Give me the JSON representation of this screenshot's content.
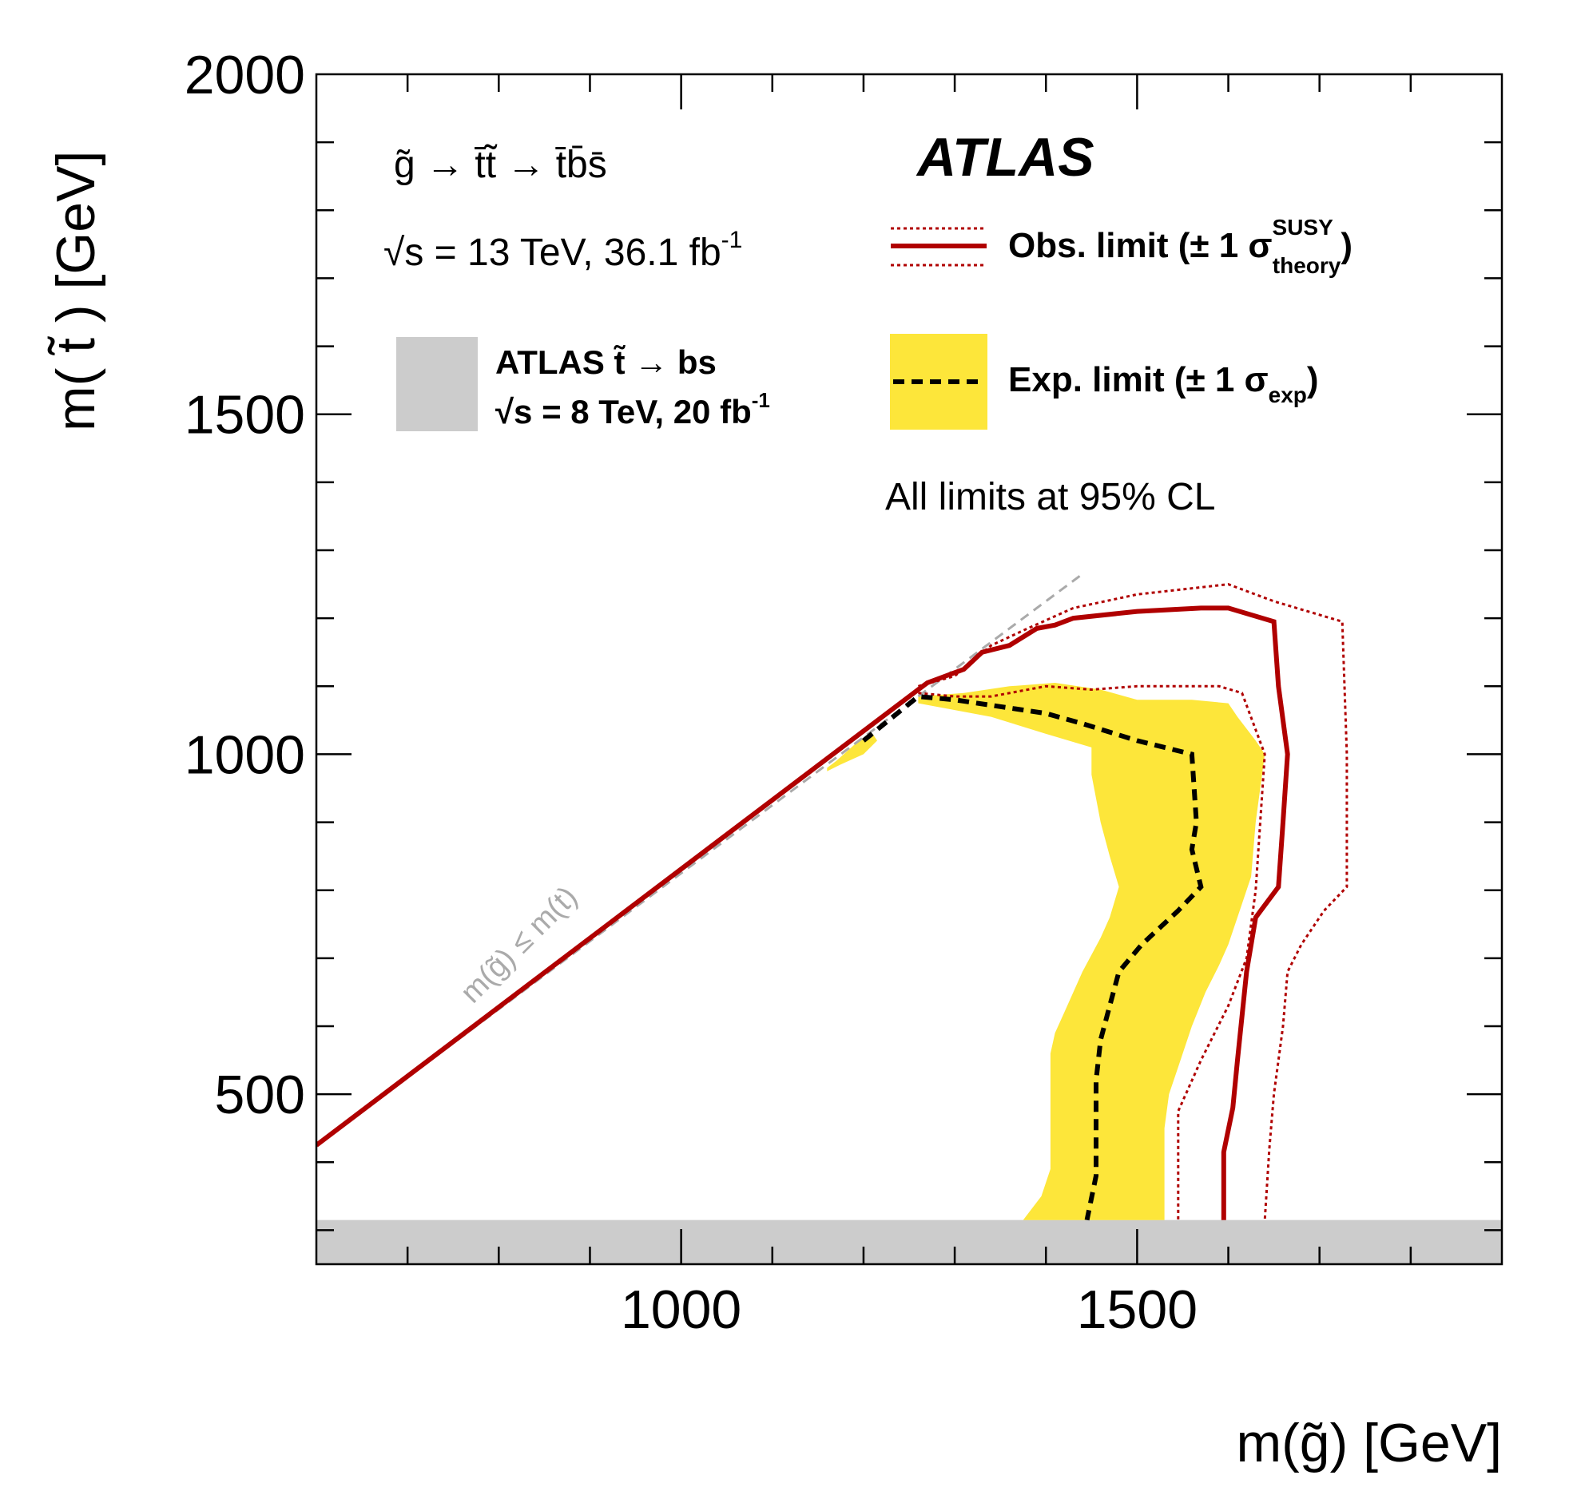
{
  "chart_data": {
    "type": "area",
    "title": "",
    "xlabel": "m(g̃) [GeV]",
    "ylabel": "m( t̃ ) [GeV]",
    "xlim": [
      600,
      1900
    ],
    "ylim": [
      250,
      2000
    ],
    "x_ticks": [
      1000,
      1500
    ],
    "y_ticks": [
      500,
      1000,
      1500,
      2000
    ],
    "x_tick_labels": [
      "1000",
      "1500"
    ],
    "y_tick_labels": [
      "500",
      "1000",
      "1500",
      "2000"
    ],
    "process": "g̃ → t̄t̃ → t̄b̄s̄",
    "energy": "√s = 13 TeV, 36.1 fb",
    "energy_sup": "-1",
    "experiment": "ATLAS",
    "cl_note": "All limits at 95% CL",
    "diagonal_label": "m(g̃) ≤ m(t)",
    "legend": {
      "obs": {
        "text": "Obs. limit (± 1 σ",
        "sup": "SUSY",
        "sub": "theory",
        "close": ")"
      },
      "exp": {
        "text": "Exp. limit (± 1 σ",
        "sub": "exp",
        "close": ")"
      },
      "prev_line1": "ATLAS t̃ → bs",
      "prev_line2": "√s = 8 TeV, 20 fb",
      "prev_sup": "-1"
    },
    "colors": {
      "obs": "#b00000",
      "obs_band": "#b00000",
      "exp": "#000000",
      "exp_band": "#fde63a",
      "excluded_prev": "#cccccc",
      "diagonal": "#aaaaaa"
    },
    "previous_exclusion": {
      "x_range": [
        600,
        1900
      ],
      "y_range": [
        250,
        315
      ]
    },
    "series": [
      {
        "name": "Observed limit",
        "style": "solid",
        "points": [
          [
            600,
            425
          ],
          [
            1260,
            1095
          ],
          [
            1270,
            1105
          ],
          [
            1310,
            1125
          ],
          [
            1330,
            1150
          ],
          [
            1360,
            1160
          ],
          [
            1390,
            1185
          ],
          [
            1410,
            1190
          ],
          [
            1430,
            1200
          ],
          [
            1500,
            1210
          ],
          [
            1570,
            1215
          ],
          [
            1600,
            1215
          ],
          [
            1650,
            1195
          ],
          [
            1655,
            1100
          ],
          [
            1665,
            1000
          ],
          [
            1660,
            900
          ],
          [
            1655,
            805
          ],
          [
            1630,
            760
          ],
          [
            1620,
            680
          ],
          [
            1610,
            550
          ],
          [
            1605,
            480
          ],
          [
            1595,
            415
          ],
          [
            1595,
            315
          ]
        ]
      },
      {
        "name": "Observed +1σ theory",
        "style": "dotted",
        "points": [
          [
            1260,
            1100
          ],
          [
            1300,
            1115
          ],
          [
            1340,
            1160
          ],
          [
            1380,
            1185
          ],
          [
            1430,
            1215
          ],
          [
            1500,
            1235
          ],
          [
            1600,
            1250
          ],
          [
            1650,
            1225
          ],
          [
            1725,
            1195
          ],
          [
            1730,
            1000
          ],
          [
            1730,
            805
          ],
          [
            1705,
            770
          ],
          [
            1680,
            720
          ],
          [
            1665,
            680
          ],
          [
            1660,
            600
          ],
          [
            1650,
            500
          ],
          [
            1645,
            420
          ],
          [
            1640,
            315
          ]
        ]
      },
      {
        "name": "Observed -1σ theory",
        "style": "dotted",
        "points": [
          [
            1260,
            1090
          ],
          [
            1300,
            1085
          ],
          [
            1340,
            1085
          ],
          [
            1400,
            1100
          ],
          [
            1450,
            1095
          ],
          [
            1500,
            1100
          ],
          [
            1590,
            1100
          ],
          [
            1615,
            1090
          ],
          [
            1640,
            1000
          ],
          [
            1635,
            900
          ],
          [
            1630,
            800
          ],
          [
            1620,
            700
          ],
          [
            1600,
            630
          ],
          [
            1570,
            550
          ],
          [
            1545,
            475
          ],
          [
            1545,
            315
          ]
        ]
      },
      {
        "name": "Expected limit",
        "style": "dashed",
        "points": [
          [
            1200,
            1020
          ],
          [
            1260,
            1085
          ],
          [
            1300,
            1080
          ],
          [
            1350,
            1070
          ],
          [
            1400,
            1060
          ],
          [
            1440,
            1045
          ],
          [
            1500,
            1020
          ],
          [
            1560,
            1000
          ],
          [
            1565,
            900
          ],
          [
            1560,
            860
          ],
          [
            1570,
            805
          ],
          [
            1545,
            770
          ],
          [
            1505,
            720
          ],
          [
            1480,
            680
          ],
          [
            1470,
            630
          ],
          [
            1460,
            580
          ],
          [
            1455,
            520
          ],
          [
            1455,
            450
          ],
          [
            1455,
            380
          ],
          [
            1445,
            315
          ]
        ]
      }
    ],
    "expected_band": [
      [
        1260,
        1085
      ],
      [
        1310,
        1090
      ],
      [
        1360,
        1100
      ],
      [
        1410,
        1105
      ],
      [
        1460,
        1095
      ],
      [
        1500,
        1080
      ],
      [
        1560,
        1080
      ],
      [
        1600,
        1075
      ],
      [
        1610,
        1055
      ],
      [
        1630,
        1020
      ],
      [
        1640,
        1000
      ],
      [
        1630,
        900
      ],
      [
        1625,
        820
      ],
      [
        1615,
        780
      ],
      [
        1600,
        720
      ],
      [
        1590,
        690
      ],
      [
        1575,
        650
      ],
      [
        1560,
        600
      ],
      [
        1545,
        540
      ],
      [
        1535,
        500
      ],
      [
        1530,
        450
      ],
      [
        1530,
        315
      ],
      [
        1375,
        315
      ],
      [
        1395,
        350
      ],
      [
        1405,
        390
      ],
      [
        1405,
        450
      ],
      [
        1405,
        560
      ],
      [
        1410,
        590
      ],
      [
        1420,
        620
      ],
      [
        1440,
        680
      ],
      [
        1460,
        730
      ],
      [
        1470,
        760
      ],
      [
        1480,
        805
      ],
      [
        1470,
        850
      ],
      [
        1460,
        900
      ],
      [
        1450,
        970
      ],
      [
        1450,
        1010
      ],
      [
        1400,
        1030
      ],
      [
        1340,
        1055
      ],
      [
        1300,
        1065
      ],
      [
        1260,
        1075
      ]
    ],
    "expected_band_small": [
      [
        1160,
        975
      ],
      [
        1175,
        985
      ],
      [
        1200,
        1000
      ],
      [
        1215,
        1020
      ],
      [
        1210,
        1030
      ],
      [
        1195,
        1020
      ],
      [
        1170,
        990
      ],
      [
        1160,
        980
      ]
    ]
  }
}
